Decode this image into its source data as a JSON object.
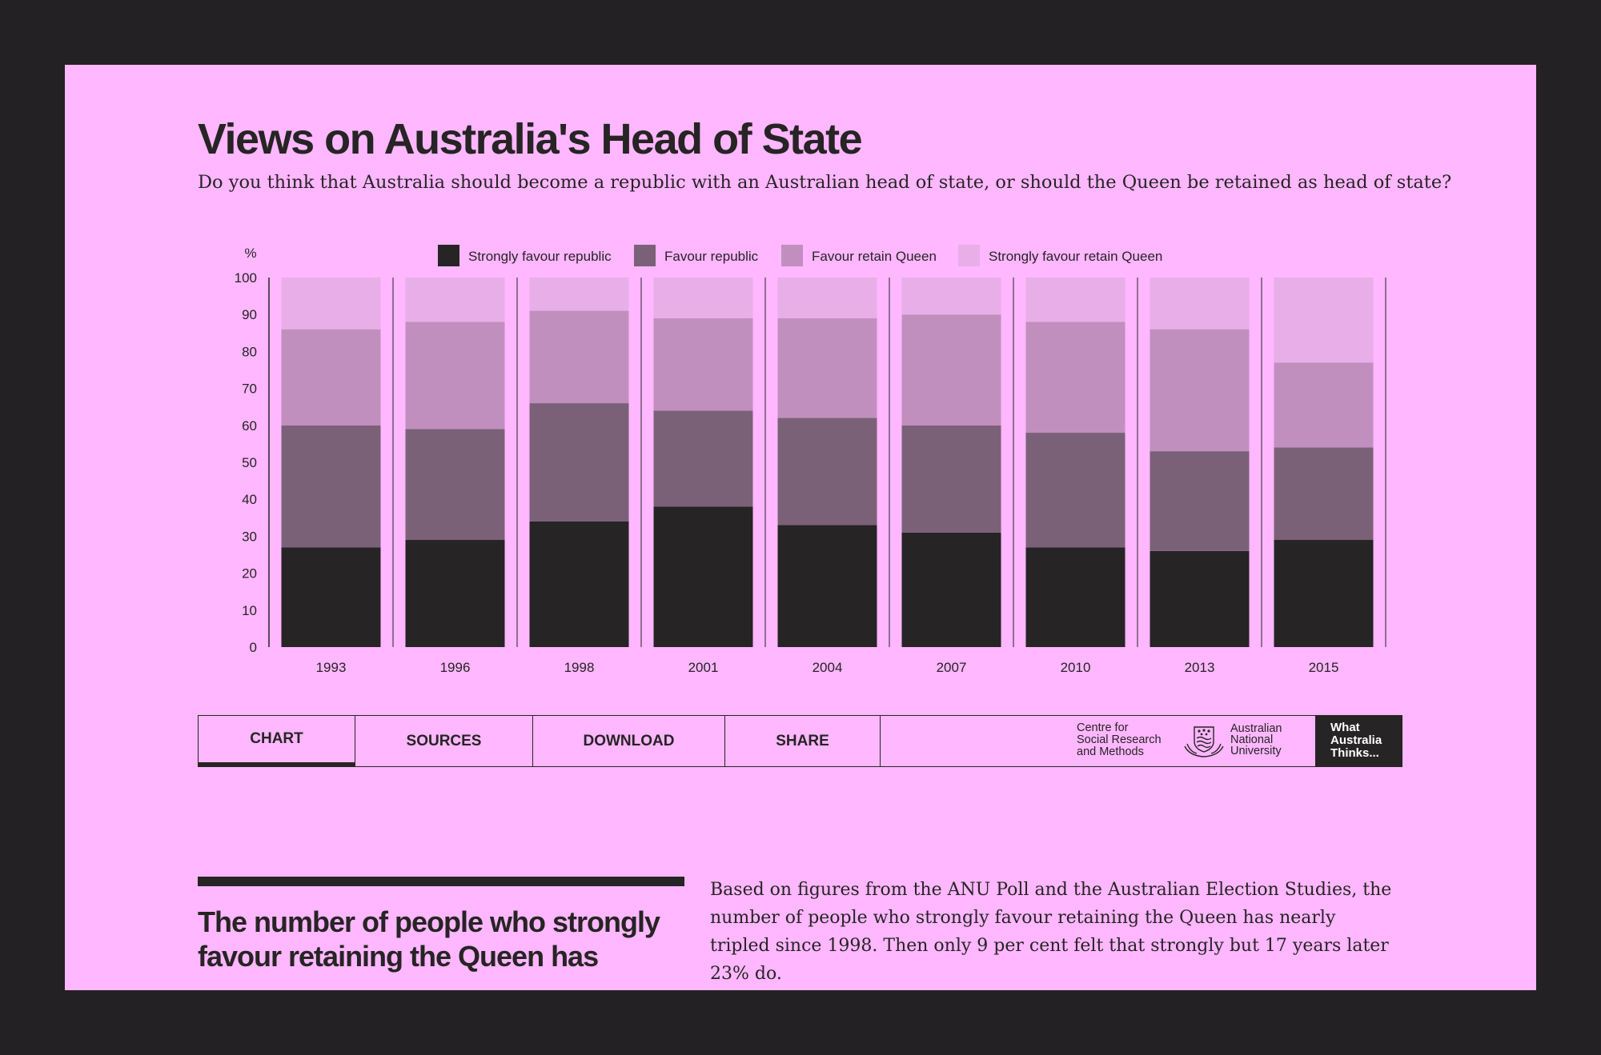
{
  "page": {
    "title": "Views on Australia's Head of State",
    "question": "Do you think that Australia should become a republic with an Australian head of state, or should the Queen be retained as head of state?"
  },
  "colors": {
    "background": "#232123",
    "card": "#ffb7ff",
    "ink": "#262424"
  },
  "chart_data": {
    "type": "bar",
    "stacked": true,
    "title": "Views on Australia's Head of State",
    "ylabel": "%",
    "xlabel": "",
    "ylim": [
      0,
      100
    ],
    "yticks": [
      0,
      10,
      20,
      30,
      40,
      50,
      60,
      70,
      80,
      90,
      100
    ],
    "categories": [
      "1993",
      "1996",
      "1998",
      "2001",
      "2004",
      "2007",
      "2010",
      "2013",
      "2015"
    ],
    "legend_position": "top",
    "series": [
      {
        "name": "Strongly favour republic",
        "color": "#262424",
        "values": [
          27,
          29,
          34,
          38,
          33,
          31,
          27,
          26,
          29
        ]
      },
      {
        "name": "Favour republic",
        "color": "#7b6177",
        "values": [
          33,
          30,
          32,
          26,
          29,
          29,
          31,
          27,
          25
        ]
      },
      {
        "name": "Favour retain Queen",
        "color": "#c08fbe",
        "values": [
          26,
          29,
          25,
          25,
          27,
          30,
          30,
          33,
          23
        ]
      },
      {
        "name": "Strongly favour retain Queen",
        "color": "#e8aee8",
        "values": [
          14,
          12,
          9,
          11,
          11,
          10,
          12,
          14,
          23
        ]
      }
    ]
  },
  "tabs": {
    "chart": "CHART",
    "sources": "SOURCES",
    "download": "DOWNLOAD",
    "share": "SHARE"
  },
  "logos": {
    "csrm": "Centre for\nSocial Research\nand Methods",
    "anu": "Australian\nNational\nUniversity",
    "wat": "What\nAustralia\nThinks..."
  },
  "article": {
    "headline": "The number of people who strongly favour retaining the Queen has",
    "body": "Based on figures from the ANU Poll and the Australian Election Studies, the number of people who strongly favour retaining the Queen has nearly tripled since 1998. Then only 9 per cent felt that strongly but 17 years later 23% do."
  }
}
